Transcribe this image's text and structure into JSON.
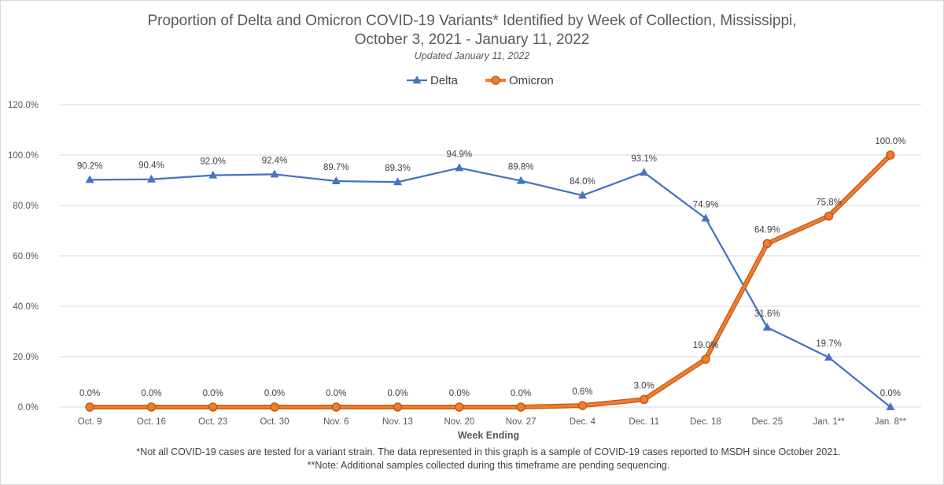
{
  "chart_data": {
    "type": "line",
    "title_line1": "Proportion of Delta and Omicron COVID-19 Variants* Identified by Week of Collection, Mississippi,",
    "title_line2": "October 3, 2021 - January 11, 2022",
    "subtitle": "Updated January 11, 2022",
    "xlabel": "Week Ending",
    "ylabel": "",
    "ylim": [
      0,
      120
    ],
    "yticks": [
      "0.0%",
      "20.0%",
      "40.0%",
      "60.0%",
      "80.0%",
      "100.0%",
      "120.0%"
    ],
    "grid": true,
    "legend_position": "top-center",
    "categories": [
      "Oct. 9",
      "Oct. 16",
      "Oct. 23",
      "Oct. 30",
      "Nov. 6",
      "Nov. 13",
      "Nov. 20",
      "Nov. 27",
      "Dec. 4",
      "Dec. 11",
      "Dec. 18",
      "Dec. 25",
      "Jan. 1**",
      "Jan. 8**"
    ],
    "series": [
      {
        "name": "Delta",
        "color": "#4472c4",
        "marker": "triangle",
        "values": [
          90.2,
          90.4,
          92.0,
          92.4,
          89.7,
          89.3,
          94.9,
          89.8,
          84.0,
          93.1,
          74.9,
          31.6,
          19.7,
          0.0
        ],
        "labels": [
          "90.2%",
          "90.4%",
          "92.0%",
          "92.4%",
          "89.7%",
          "89.3%",
          "94.9%",
          "89.8%",
          "84.0%",
          "93.1%",
          "74.9%",
          "31.6%",
          "19.7%",
          "0.0%"
        ]
      },
      {
        "name": "Omicron",
        "color": "#ed7d31",
        "marker": "circle",
        "values": [
          0.0,
          0.0,
          0.0,
          0.0,
          0.0,
          0.0,
          0.0,
          0.0,
          0.6,
          3.0,
          19.0,
          64.9,
          75.8,
          100.0
        ],
        "labels": [
          "0.0%",
          "0.0%",
          "0.0%",
          "0.0%",
          "0.0%",
          "0.0%",
          "0.0%",
          "0.0%",
          "0.6%",
          "3.0%",
          "19.0%",
          "64.9%",
          "75.8%",
          "100.0%"
        ]
      }
    ],
    "footnotes": [
      "*Not all COVID-19 cases are tested for a variant strain. The data represented in this graph is a sample of COVID-19 cases reported to MSDH since October 2021.",
      "**Note: Additional samples collected during this timeframe are pending sequencing."
    ]
  }
}
